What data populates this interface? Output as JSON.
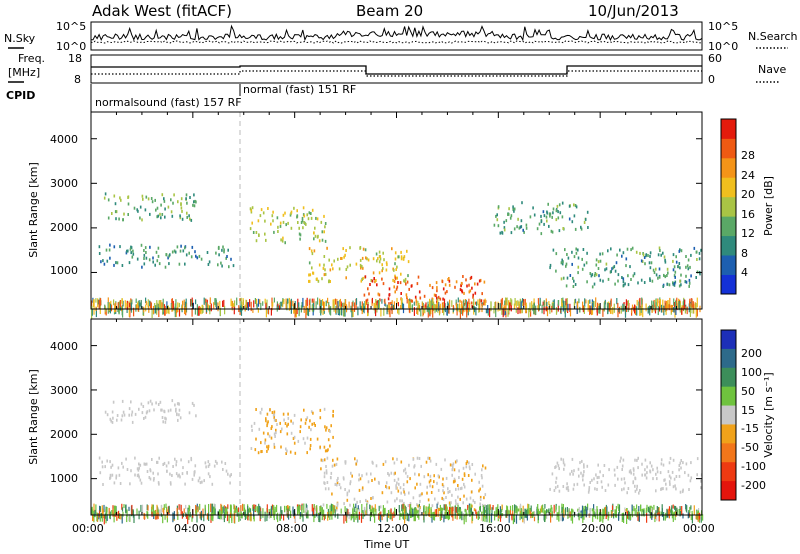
{
  "header": {
    "title": "Adak West (fitACF)",
    "beam": "Beam 20",
    "date": "10/Jun/2013"
  },
  "panels": {
    "noise": {
      "left_label": "N.Sky",
      "right_label": "N.Search",
      "left_ticks": [
        "10^5",
        "10^0"
      ],
      "right_ticks": [
        "10^5",
        "10^0"
      ]
    },
    "freq": {
      "left_label_1": "Freq.",
      "left_label_2": "[MHz]",
      "left_ticks": [
        "18",
        "8"
      ],
      "right_label": "Nave",
      "right_ticks": [
        "60",
        "0"
      ],
      "cpid_label": "CPID",
      "cpid_1": "normalsound (fast) 157 RF",
      "cpid_2": "normal (fast) 151 RF"
    }
  },
  "axes": {
    "ylabel": "Slant Range [km]",
    "xlabel": "Time UT",
    "yticks": [
      "1000",
      "2000",
      "3000",
      "4000"
    ],
    "xticks": [
      "00:00",
      "04:00",
      "08:00",
      "12:00",
      "16:00",
      "20:00",
      "00:00"
    ]
  },
  "colorbars": {
    "power": {
      "label": "Power [dB]",
      "ticks": [
        "4",
        "8",
        "12",
        "16",
        "20",
        "24",
        "28"
      ],
      "colors": [
        "#1431d6",
        "#1d5fb0",
        "#2f8a7c",
        "#5aa866",
        "#a9c445",
        "#f0bf1e",
        "#f49418",
        "#ef5a13",
        "#e41b0c"
      ]
    },
    "velocity": {
      "label": "Velocity [m s⁻¹]",
      "ticks": [
        "200",
        "100",
        "50",
        "15",
        "-15",
        "-50",
        "-100",
        "-200"
      ],
      "colors": [
        "#1d2fb8",
        "#2d6a8a",
        "#3c8e5a",
        "#6fc33e",
        "#c8c8c8",
        "#f0a21a",
        "#f2761a",
        "#ee3a12",
        "#e4140c"
      ]
    }
  },
  "chart_data": [
    {
      "type": "heatmap",
      "name": "power",
      "x_range": [
        "00:00",
        "24:00"
      ],
      "ylim": [
        180,
        4600
      ],
      "value_units": "dB",
      "echo_regions": [
        {
          "t0": 0.3,
          "t1": 5.6,
          "r0": 1150,
          "r1": 1650,
          "level": 9
        },
        {
          "t0": 0.5,
          "t1": 4.2,
          "r0": 2200,
          "r1": 2800,
          "level": 12
        },
        {
          "t0": 6.2,
          "t1": 9.2,
          "r0": 1700,
          "r1": 2500,
          "level": 15
        },
        {
          "t0": 8.5,
          "t1": 12.5,
          "r0": 800,
          "r1": 1600,
          "level": 17
        },
        {
          "t0": 10.7,
          "t1": 15.5,
          "r0": 250,
          "r1": 950,
          "level": 25
        },
        {
          "t0": 18.0,
          "t1": 24.0,
          "r0": 700,
          "r1": 1600,
          "level": 10
        },
        {
          "t0": 15.8,
          "t1": 19.5,
          "r0": 1900,
          "r1": 2600,
          "level": 10
        }
      ]
    },
    {
      "type": "heatmap",
      "name": "velocity",
      "x_range": [
        "00:00",
        "24:00"
      ],
      "ylim": [
        180,
        4600
      ],
      "value_units": "m s-1",
      "echo_regions": [
        {
          "t0": 0.3,
          "t1": 5.6,
          "r0": 900,
          "r1": 1500,
          "level": 0
        },
        {
          "t0": 0.5,
          "t1": 4.2,
          "r0": 2300,
          "r1": 2800,
          "level": 0
        },
        {
          "t0": 6.2,
          "t1": 9.5,
          "r0": 1600,
          "r1": 2600,
          "level": -20
        },
        {
          "t0": 9.0,
          "t1": 15.5,
          "r0": 300,
          "r1": 1500,
          "level": -10
        },
        {
          "t0": 18.0,
          "t1": 24.0,
          "r0": 700,
          "r1": 1500,
          "level": 0
        },
        {
          "t0": 12.0,
          "t1": 24.0,
          "r0": 180,
          "r1": 350,
          "level": 30
        }
      ]
    }
  ]
}
